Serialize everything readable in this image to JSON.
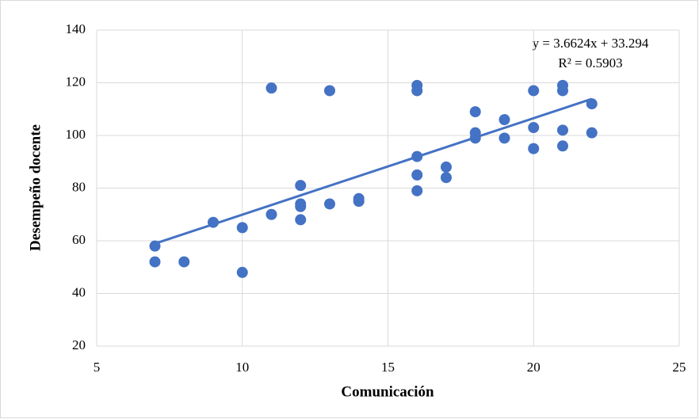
{
  "chart_data": {
    "type": "scatter",
    "x_label": "Comunicación",
    "y_label": "Desempeño docente",
    "x": [
      7,
      7,
      8,
      9,
      10,
      10,
      11,
      11,
      12,
      12,
      12,
      12,
      13,
      13,
      14,
      14,
      16,
      16,
      16,
      16,
      16,
      17,
      17,
      18,
      18,
      18,
      19,
      19,
      20,
      20,
      20,
      21,
      21,
      21,
      21,
      22,
      22
    ],
    "values": [
      58,
      52,
      52,
      67,
      65,
      48,
      118,
      70,
      81,
      74,
      73,
      68,
      117,
      74,
      76,
      75,
      119,
      117,
      92,
      85,
      79,
      88,
      84,
      109,
      101,
      99,
      106,
      99,
      117,
      103,
      95,
      119,
      117,
      102,
      96,
      112,
      101
    ],
    "color": "#4472c4",
    "trendline": {
      "label": "y = 3.6624x + 33.294",
      "r2_label": "R² = 0.5903",
      "slope": 3.6624,
      "intercept": 33.294,
      "color": "#4472c4"
    },
    "xlim": [
      5,
      25
    ],
    "xticks": [
      5,
      10,
      15,
      20,
      25
    ],
    "ylim": [
      20,
      140
    ],
    "yticks": [
      20,
      40,
      60,
      80,
      100,
      120,
      140
    ],
    "grid": true
  }
}
